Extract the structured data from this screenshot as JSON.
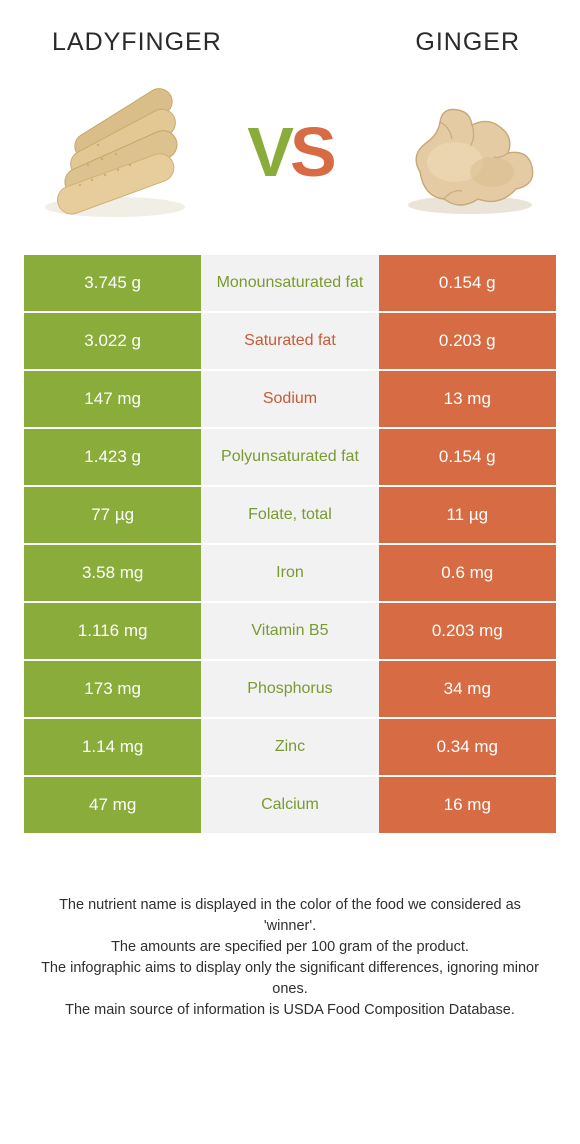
{
  "header": {
    "left_title": "LADYFINGER",
    "right_title": "GINGER"
  },
  "vs": {
    "v": "V",
    "s": "S"
  },
  "colors": {
    "left": "#8aac3a",
    "right": "#d76b43",
    "mid_bg": "#f2f2f2"
  },
  "rows": [
    {
      "left": "3.745 g",
      "label": "Monounsaturated fat",
      "right": "0.154 g",
      "winner": "left"
    },
    {
      "left": "3.022 g",
      "label": "Saturated fat",
      "right": "0.203 g",
      "winner": "right"
    },
    {
      "left": "147 mg",
      "label": "Sodium",
      "right": "13 mg",
      "winner": "right"
    },
    {
      "left": "1.423 g",
      "label": "Polyunsaturated fat",
      "right": "0.154 g",
      "winner": "left"
    },
    {
      "left": "77 µg",
      "label": "Folate, total",
      "right": "11 µg",
      "winner": "left"
    },
    {
      "left": "3.58 mg",
      "label": "Iron",
      "right": "0.6 mg",
      "winner": "left"
    },
    {
      "left": "1.116 mg",
      "label": "Vitamin B5",
      "right": "0.203 mg",
      "winner": "left"
    },
    {
      "left": "173 mg",
      "label": "Phosphorus",
      "right": "34 mg",
      "winner": "left"
    },
    {
      "left": "1.14 mg",
      "label": "Zinc",
      "right": "0.34 mg",
      "winner": "left"
    },
    {
      "left": "47 mg",
      "label": "Calcium",
      "right": "16 mg",
      "winner": "left"
    }
  ],
  "footnotes": [
    "The nutrient name is displayed in the color of the food we considered as 'winner'.",
    "The amounts are specified per 100 gram of the product.",
    "The infographic aims to display only the significant differences, ignoring minor ones.",
    "The main source of information is USDA Food Composition Database."
  ]
}
